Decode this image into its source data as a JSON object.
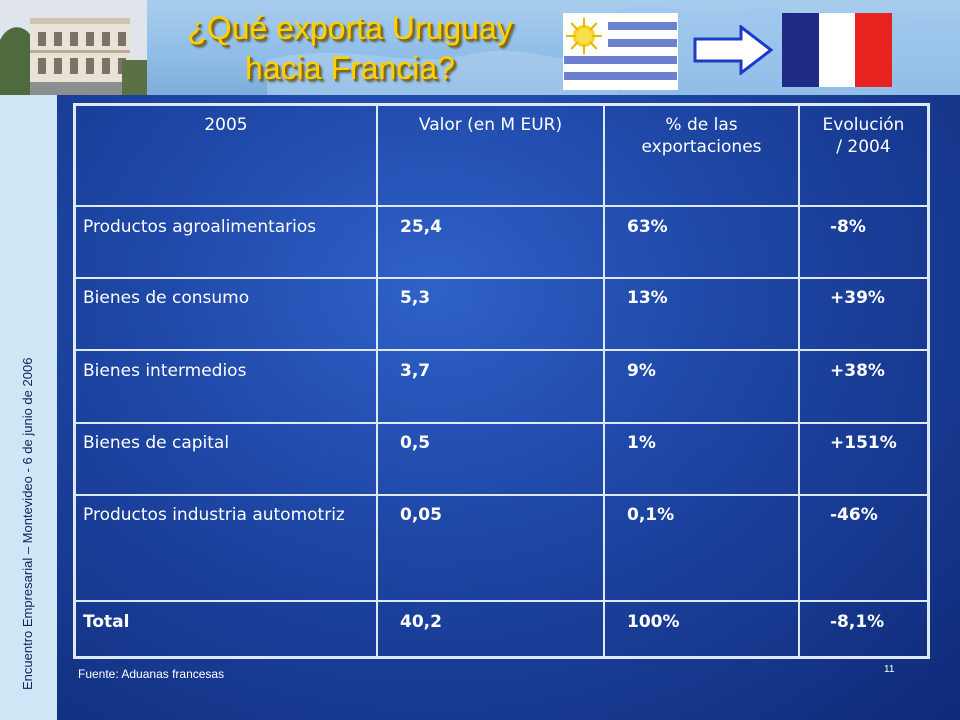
{
  "slide": {
    "title_line1": "¿Qué exporta Uruguay",
    "title_line2": "hacia Francia?",
    "side_caption": "Encuentro Empresarial – Montevideo - 6 de junio de 2006",
    "source": "Fuente: Aduanas francesas",
    "page_number": "11"
  },
  "table": {
    "headers": [
      "2005",
      "Valor (en M EUR)",
      "% de las exportaciones",
      "Evolución / 2004"
    ],
    "rows": [
      [
        "Productos agroalimentarios",
        "25,4",
        "63%",
        "-8%"
      ],
      [
        "Bienes de consumo",
        "5,3",
        "13%",
        "+39%"
      ],
      [
        "Bienes intermedios",
        "3,7",
        "9%",
        "+38%"
      ],
      [
        "Bienes de capital",
        "0,5",
        "1%",
        "+151%"
      ],
      [
        "Productos industria automotriz",
        "0,05",
        "0,1%",
        "-46%"
      ],
      [
        "Total",
        "40,2",
        "100%",
        "-8,1%"
      ]
    ]
  },
  "colors": {
    "title": "#ffd000",
    "background": "#1e47a6",
    "uruguay_blue": "#6d7fcf",
    "uruguay_sun": "#f5d21b",
    "france_blue": "#1f2a86",
    "france_red": "#e8231f",
    "arrow": "#1d39c8"
  },
  "icons": [
    "building-photo",
    "uruguay-flag",
    "arrow-right-icon",
    "france-flag"
  ]
}
